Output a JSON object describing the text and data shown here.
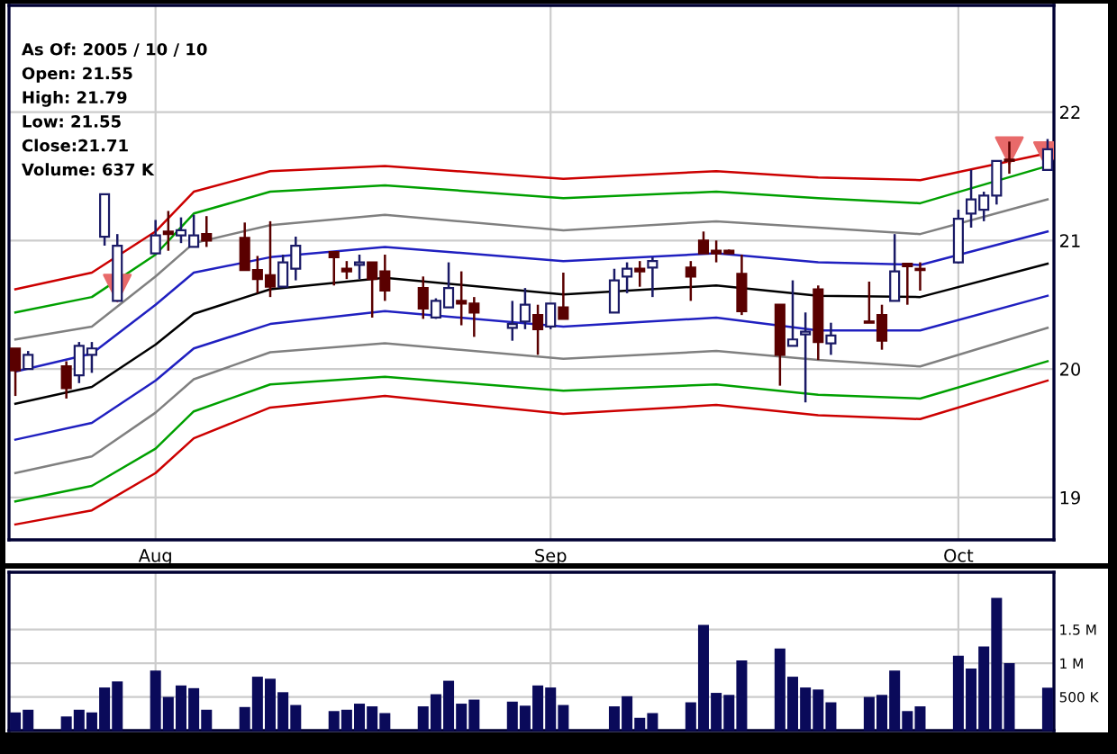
{
  "chart_data": [
    {
      "type": "candlestick",
      "x": [
        "2005-07-21",
        "2005-07-22",
        "2005-07-25",
        "2005-07-26",
        "2005-07-27",
        "2005-07-28",
        "2005-07-29",
        "2005-08-01",
        "2005-08-02",
        "2005-08-03",
        "2005-08-04",
        "2005-08-05",
        "2005-08-08",
        "2005-08-09",
        "2005-08-10",
        "2005-08-11",
        "2005-08-12",
        "2005-08-15",
        "2005-08-16",
        "2005-08-17",
        "2005-08-18",
        "2005-08-19",
        "2005-08-22",
        "2005-08-23",
        "2005-08-24",
        "2005-08-25",
        "2005-08-26",
        "2005-08-29",
        "2005-08-30",
        "2005-08-31",
        "2005-09-01",
        "2005-09-02",
        "2005-09-06",
        "2005-09-07",
        "2005-09-08",
        "2005-09-09",
        "2005-09-12",
        "2005-09-13",
        "2005-09-14",
        "2005-09-15",
        "2005-09-16",
        "2005-09-19",
        "2005-09-20",
        "2005-09-21",
        "2005-09-22",
        "2005-09-23",
        "2005-09-26",
        "2005-09-27",
        "2005-09-28",
        "2005-09-29",
        "2005-09-30",
        "2005-10-03",
        "2005-10-04",
        "2005-10-05",
        "2005-10-06",
        "2005-10-07",
        "2005-10-10"
      ],
      "ohlc": [
        [
          20.16,
          20.16,
          19.79,
          19.99
        ],
        [
          20.0,
          20.14,
          20.0,
          20.11
        ],
        [
          20.02,
          20.06,
          19.77,
          19.85
        ],
        [
          19.95,
          20.21,
          19.89,
          20.18
        ],
        [
          20.11,
          20.21,
          19.97,
          20.16
        ],
        [
          21.03,
          21.36,
          20.96,
          21.36
        ],
        [
          20.53,
          21.05,
          20.53,
          20.96
        ],
        [
          20.9,
          21.16,
          20.9,
          21.04
        ],
        [
          21.07,
          21.23,
          20.92,
          21.05
        ],
        [
          21.04,
          21.18,
          20.98,
          21.08
        ],
        [
          20.95,
          21.2,
          20.95,
          21.04
        ],
        [
          21.05,
          21.19,
          20.95,
          21.0
        ],
        [
          21.02,
          21.14,
          20.77,
          20.77
        ],
        [
          20.77,
          20.88,
          20.59,
          20.7
        ],
        [
          20.73,
          21.15,
          20.56,
          20.64
        ],
        [
          20.64,
          20.89,
          20.64,
          20.83
        ],
        [
          20.78,
          21.03,
          20.69,
          20.96
        ],
        [
          20.91,
          20.91,
          20.65,
          20.87
        ],
        [
          20.78,
          20.84,
          20.7,
          20.76
        ],
        [
          20.81,
          20.89,
          20.7,
          20.83
        ],
        [
          20.83,
          20.83,
          20.4,
          20.7
        ],
        [
          20.76,
          20.89,
          20.53,
          20.61
        ],
        [
          20.63,
          20.72,
          20.39,
          20.47
        ],
        [
          20.4,
          20.55,
          20.39,
          20.53
        ],
        [
          20.48,
          20.83,
          20.48,
          20.63
        ],
        [
          20.53,
          20.76,
          20.34,
          20.51
        ],
        [
          20.51,
          20.56,
          20.25,
          20.44
        ],
        [
          20.32,
          20.53,
          20.22,
          20.35
        ],
        [
          20.37,
          20.63,
          20.31,
          20.5
        ],
        [
          20.42,
          20.5,
          20.11,
          20.31
        ],
        [
          20.33,
          20.51,
          20.31,
          20.51
        ],
        [
          20.48,
          20.75,
          20.39,
          20.39
        ],
        [
          20.44,
          20.78,
          20.44,
          20.69
        ],
        [
          20.72,
          20.83,
          20.59,
          20.78
        ],
        [
          20.78,
          20.84,
          20.64,
          20.76
        ],
        [
          20.79,
          20.87,
          20.56,
          20.84
        ],
        [
          20.79,
          20.84,
          20.53,
          20.72
        ],
        [
          21.0,
          21.07,
          20.9,
          20.9
        ],
        [
          20.92,
          21.0,
          20.83,
          20.9
        ],
        [
          20.92,
          20.93,
          20.9,
          20.9
        ],
        [
          20.74,
          20.89,
          20.42,
          20.45
        ],
        [
          20.5,
          20.5,
          19.87,
          20.11
        ],
        [
          20.18,
          20.69,
          20.18,
          20.23
        ],
        [
          20.27,
          20.44,
          19.74,
          20.29
        ],
        [
          20.62,
          20.65,
          20.07,
          20.21
        ],
        [
          20.2,
          20.36,
          20.11,
          20.26
        ],
        [
          20.37,
          20.68,
          20.36,
          20.36
        ],
        [
          20.42,
          20.5,
          20.15,
          20.22
        ],
        [
          20.53,
          21.05,
          20.53,
          20.76
        ],
        [
          20.82,
          20.82,
          20.5,
          20.8
        ],
        [
          20.78,
          20.83,
          20.61,
          20.77
        ],
        [
          20.83,
          21.24,
          20.82,
          21.17
        ],
        [
          21.21,
          21.55,
          21.1,
          21.32
        ],
        [
          21.24,
          21.38,
          21.15,
          21.35
        ],
        [
          21.35,
          21.62,
          21.28,
          21.62
        ],
        [
          21.63,
          21.77,
          21.52,
          21.62
        ],
        [
          21.55,
          21.79,
          21.55,
          21.71
        ]
      ],
      "xlim": [
        "2005-07-20T12:00",
        "2005-10-10T12:00"
      ],
      "xticks": [
        {
          "value": "2005-08-01",
          "label": "Aug"
        },
        {
          "value": "2005-09-01",
          "label": "Sep"
        },
        {
          "value": "2005-10-03",
          "label": "Oct"
        }
      ],
      "ylim": [
        18.67,
        22.83
      ],
      "yticks": [
        19,
        20,
        21,
        22
      ],
      "grid": true,
      "annotations": [
        "As Of: 2005 / 10 / 10",
        "Open: 21.55",
        "High: 21.79",
        "Low: 21.55",
        "Close:21.71",
        "Volume: 637 K"
      ],
      "series": [
        {
          "type": "line",
          "color": "#cc0000",
          "x": [
            "2005-07-21",
            "2005-07-27",
            "2005-08-01",
            "2005-08-04",
            "2005-08-10",
            "2005-08-19",
            "2005-09-02",
            "2005-09-14",
            "2005-09-22",
            "2005-09-30",
            "2005-10-10"
          ],
          "values": [
            20.62,
            20.75,
            21.07,
            21.38,
            21.54,
            21.58,
            21.48,
            21.54,
            21.49,
            21.47,
            21.68
          ]
        },
        {
          "type": "line",
          "color": "#00a000",
          "x": [
            "2005-07-21",
            "2005-07-27",
            "2005-08-01",
            "2005-08-04",
            "2005-08-10",
            "2005-08-19",
            "2005-09-02",
            "2005-09-14",
            "2005-09-22",
            "2005-09-30",
            "2005-10-10"
          ],
          "values": [
            20.44,
            20.56,
            20.89,
            21.21,
            21.38,
            21.43,
            21.33,
            21.38,
            21.33,
            21.29,
            21.58
          ]
        },
        {
          "type": "line",
          "color": "#808080",
          "x": [
            "2005-07-21",
            "2005-07-27",
            "2005-08-01",
            "2005-08-04",
            "2005-08-10",
            "2005-08-19",
            "2005-09-02",
            "2005-09-14",
            "2005-09-22",
            "2005-09-30",
            "2005-10-10"
          ],
          "values": [
            20.23,
            20.33,
            20.72,
            20.98,
            21.12,
            21.2,
            21.08,
            21.15,
            21.1,
            21.05,
            21.32
          ]
        },
        {
          "type": "line",
          "color": "#2020c0",
          "x": [
            "2005-07-21",
            "2005-07-27",
            "2005-08-01",
            "2005-08-04",
            "2005-08-10",
            "2005-08-19",
            "2005-09-02",
            "2005-09-14",
            "2005-09-22",
            "2005-09-30",
            "2005-10-10"
          ],
          "values": [
            19.98,
            20.12,
            20.5,
            20.75,
            20.87,
            20.95,
            20.84,
            20.9,
            20.83,
            20.81,
            21.07
          ]
        },
        {
          "type": "line",
          "color": "#000000",
          "x": [
            "2005-07-21",
            "2005-07-27",
            "2005-08-01",
            "2005-08-04",
            "2005-08-10",
            "2005-08-19",
            "2005-09-02",
            "2005-09-14",
            "2005-09-22",
            "2005-09-30",
            "2005-10-10"
          ],
          "values": [
            19.73,
            19.86,
            20.19,
            20.43,
            20.62,
            20.71,
            20.58,
            20.65,
            20.57,
            20.56,
            20.82
          ]
        },
        {
          "type": "line",
          "color": "#2020c0",
          "x": [
            "2005-07-21",
            "2005-07-27",
            "2005-08-01",
            "2005-08-04",
            "2005-08-10",
            "2005-08-19",
            "2005-09-02",
            "2005-09-14",
            "2005-09-22",
            "2005-09-30",
            "2005-10-10"
          ],
          "values": [
            19.45,
            19.58,
            19.91,
            20.16,
            20.35,
            20.45,
            20.33,
            20.4,
            20.3,
            20.3,
            20.57
          ]
        },
        {
          "type": "line",
          "color": "#808080",
          "x": [
            "2005-07-21",
            "2005-07-27",
            "2005-08-01",
            "2005-08-04",
            "2005-08-10",
            "2005-08-19",
            "2005-09-02",
            "2005-09-14",
            "2005-09-22",
            "2005-09-30",
            "2005-10-10"
          ],
          "values": [
            19.19,
            19.32,
            19.66,
            19.92,
            20.13,
            20.2,
            20.08,
            20.14,
            20.07,
            20.02,
            20.32
          ]
        },
        {
          "type": "line",
          "color": "#00a000",
          "x": [
            "2005-07-21",
            "2005-07-27",
            "2005-08-01",
            "2005-08-04",
            "2005-08-10",
            "2005-08-19",
            "2005-09-02",
            "2005-09-14",
            "2005-09-22",
            "2005-09-30",
            "2005-10-10"
          ],
          "values": [
            18.97,
            19.09,
            19.38,
            19.67,
            19.88,
            19.94,
            19.83,
            19.88,
            19.8,
            19.77,
            20.06
          ]
        },
        {
          "type": "line",
          "color": "#cc0000",
          "x": [
            "2005-07-21",
            "2005-07-27",
            "2005-08-01",
            "2005-08-04",
            "2005-08-10",
            "2005-08-19",
            "2005-09-02",
            "2005-09-14",
            "2005-09-22",
            "2005-09-30",
            "2005-10-10"
          ],
          "values": [
            18.79,
            18.9,
            19.19,
            19.46,
            19.7,
            19.79,
            19.65,
            19.72,
            19.64,
            19.61,
            19.91
          ]
        },
        {
          "type": "scatter",
          "marker": "triangle",
          "color": "#e86a6a",
          "x": [
            "2005-07-29",
            "2005-10-07",
            "2005-10-10"
          ],
          "values": [
            20.63,
            21.7,
            21.66
          ]
        }
      ]
    },
    {
      "type": "bar",
      "color": "#0a0a5a",
      "x": [
        "2005-07-21",
        "2005-07-22",
        "2005-07-25",
        "2005-07-26",
        "2005-07-27",
        "2005-07-28",
        "2005-07-29",
        "2005-08-01",
        "2005-08-02",
        "2005-08-03",
        "2005-08-04",
        "2005-08-05",
        "2005-08-08",
        "2005-08-09",
        "2005-08-10",
        "2005-08-11",
        "2005-08-12",
        "2005-08-15",
        "2005-08-16",
        "2005-08-17",
        "2005-08-18",
        "2005-08-19",
        "2005-08-22",
        "2005-08-23",
        "2005-08-24",
        "2005-08-25",
        "2005-08-26",
        "2005-08-29",
        "2005-08-30",
        "2005-08-31",
        "2005-09-01",
        "2005-09-02",
        "2005-09-06",
        "2005-09-07",
        "2005-09-08",
        "2005-09-09",
        "2005-09-12",
        "2005-09-13",
        "2005-09-14",
        "2005-09-15",
        "2005-09-16",
        "2005-09-19",
        "2005-09-20",
        "2005-09-21",
        "2005-09-22",
        "2005-09-23",
        "2005-09-26",
        "2005-09-27",
        "2005-09-28",
        "2005-09-29",
        "2005-09-30",
        "2005-10-03",
        "2005-10-04",
        "2005-10-05",
        "2005-10-06",
        "2005-10-07",
        "2005-10-10"
      ],
      "values": [
        270000,
        310000,
        210000,
        310000,
        270000,
        640000,
        730000,
        890000,
        500000,
        670000,
        630000,
        310000,
        350000,
        800000,
        770000,
        570000,
        380000,
        290000,
        310000,
        400000,
        360000,
        260000,
        360000,
        540000,
        740000,
        400000,
        460000,
        430000,
        370000,
        670000,
        640000,
        380000,
        360000,
        510000,
        190000,
        260000,
        420000,
        1570000,
        560000,
        530000,
        1040000,
        1220000,
        800000,
        640000,
        610000,
        420000,
        500000,
        530000,
        890000,
        290000,
        360000,
        1110000,
        920000,
        1250000,
        1970000,
        1000000,
        637000
      ],
      "xlim": [
        "2005-07-20T12:00",
        "2005-10-10T12:00"
      ],
      "xticks": [
        {
          "value": "2005-08-01",
          "label": null
        },
        {
          "value": "2005-09-01",
          "label": null
        },
        {
          "value": "2005-10-03",
          "label": null
        }
      ],
      "ylim": [
        0,
        2350000
      ],
      "yticks": [
        {
          "value": 500000,
          "label": "500 K"
        },
        {
          "value": 1000000,
          "label": "1 M"
        },
        {
          "value": 1500000,
          "label": "1.5 M"
        }
      ],
      "grid": true,
      "tick_labels": "y"
    }
  ]
}
